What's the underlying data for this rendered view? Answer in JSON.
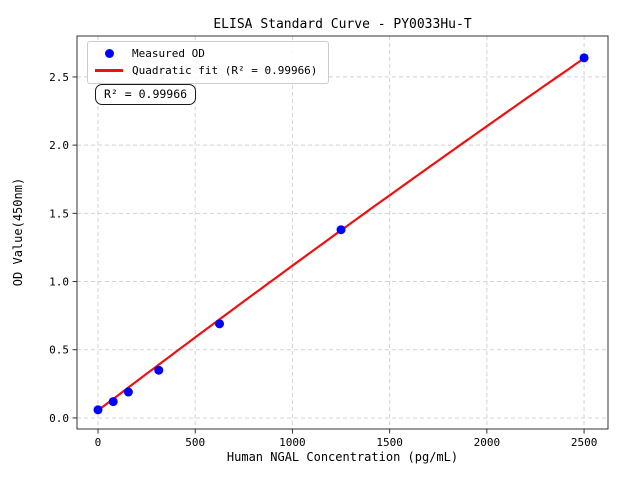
{
  "chart_data": {
    "type": "scatter",
    "title": "ELISA Standard Curve - PY0033Hu-T",
    "xlabel": "Human NGAL Concentration (pg/mL)",
    "ylabel": "OD Value(450nm)",
    "series": [
      {
        "name": "Measured OD",
        "x": [
          0,
          78.1,
          156.2,
          312.5,
          625,
          1250,
          2500
        ],
        "y": [
          0.06,
          0.12,
          0.19,
          0.35,
          0.69,
          1.38,
          2.64
        ]
      }
    ],
    "fit": {
      "name": "Quadratic fit",
      "type": "quadratic",
      "r_squared": 0.99966,
      "coefficients": {
        "a": 0.055,
        "b": 0.00108,
        "c": -1.9e-08
      },
      "x_range": [
        0,
        2500
      ]
    },
    "xticks": [
      0,
      500,
      1000,
      1500,
      2000,
      2500
    ],
    "yticks": [
      0.0,
      0.5,
      1.0,
      1.5,
      2.0,
      2.5
    ],
    "xlim": [
      -108,
      2623
    ],
    "ylim": [
      -0.081,
      2.8
    ],
    "grid": true,
    "grid_style": "dashed",
    "legend": {
      "position": "upper-left",
      "entries": [
        {
          "label": "Measured OD",
          "marker": "dot",
          "color": "#0000ff"
        },
        {
          "label": "Quadratic fit (R² = 0.99966)",
          "marker": "line",
          "color": "#ee1111"
        }
      ]
    },
    "annotation": "R² = 0.99966",
    "colors": {
      "point": "#0000ff",
      "fit_line": "#ee1111",
      "grid": "#d3d3d3",
      "spine": "#333333",
      "background": "#ffffff"
    }
  }
}
